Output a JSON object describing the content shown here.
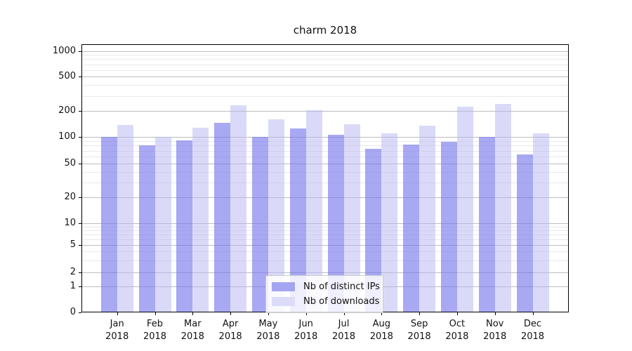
{
  "title": "charm 2018",
  "chart_data": {
    "type": "bar",
    "title": "charm 2018",
    "categories": [
      "Jan 2018",
      "Feb 2018",
      "Mar 2018",
      "Apr 2018",
      "May 2018",
      "Jun 2018",
      "Jul 2018",
      "Aug 2018",
      "Sep 2018",
      "Oct 2018",
      "Nov 2018",
      "Dec 2018"
    ],
    "series": [
      {
        "name": "Nb of distinct IPs",
        "color": "rgba(115, 115, 235, 0.62)",
        "legend_color": "#a4a4f2",
        "values": [
          100,
          80,
          91,
          145,
          100,
          127,
          106,
          74,
          82,
          88,
          101,
          63
        ]
      },
      {
        "name": "Nb of downloads",
        "color": "rgba(185, 185, 242, 0.52)",
        "legend_color": "#dcdcf8",
        "values": [
          139,
          100,
          128,
          232,
          160,
          206,
          141,
          111,
          136,
          226,
          241,
          110
        ]
      }
    ],
    "yscale": "symlog",
    "yticks": [
      0,
      1,
      2,
      5,
      10,
      20,
      50,
      100,
      200,
      500,
      1000
    ],
    "ylim": [
      0,
      1000
    ],
    "xlabel": "",
    "ylabel": "",
    "grid": "horizontal major+minor",
    "legend_position": "lower center"
  }
}
